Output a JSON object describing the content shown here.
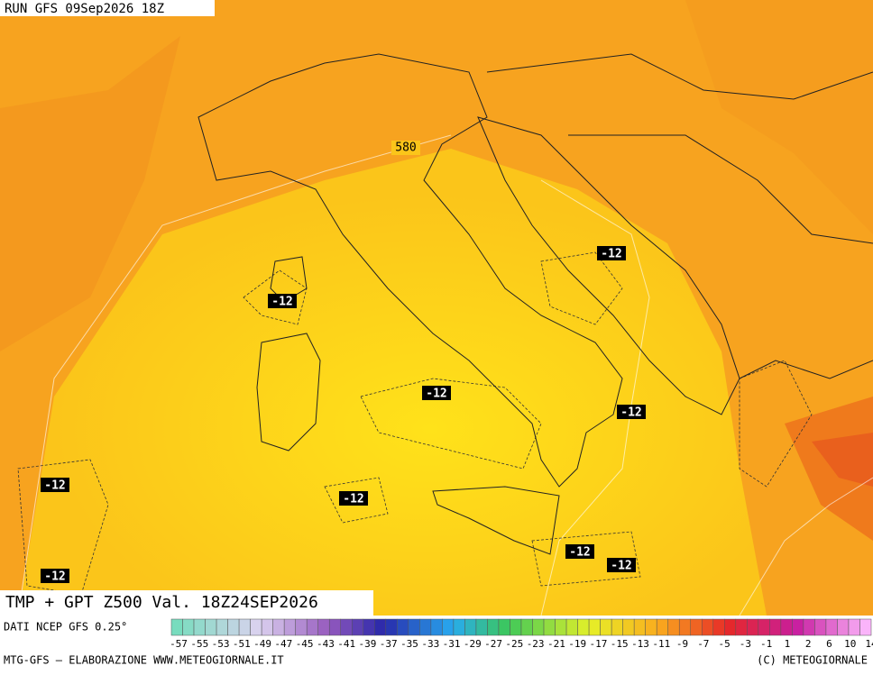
{
  "run_label": "RUN GFS 09Sep2026 18Z",
  "isoline_label": "580",
  "contour_labels": [
    "-12",
    "-12",
    "-12",
    "-12",
    "-12",
    "-12",
    "-12",
    "-12",
    "-12"
  ],
  "title": "TMP + GPT Z500 Val. 18Z24SEP2026",
  "source": "DATI NCEP GFS 0.25°",
  "colorbar_labels": [
    "-57",
    "-55",
    "-53",
    "-51",
    "-49",
    "-47",
    "-45",
    "-43",
    "-41",
    "-39",
    "-37",
    "-35",
    "-33",
    "-31",
    "-29",
    "-27",
    "-25",
    "-23",
    "-21",
    "-19",
    "-17",
    "-15",
    "-13",
    "-11",
    "-9",
    "-7",
    "-5",
    "-3",
    "-1",
    "1",
    "2",
    "6",
    "10",
    "14"
  ],
  "footer_left": "MTG-GFS — ELABORAZIONE WWW.METEOGIORNALE.IT",
  "footer_right": "(C) METEOGIORNALE"
}
